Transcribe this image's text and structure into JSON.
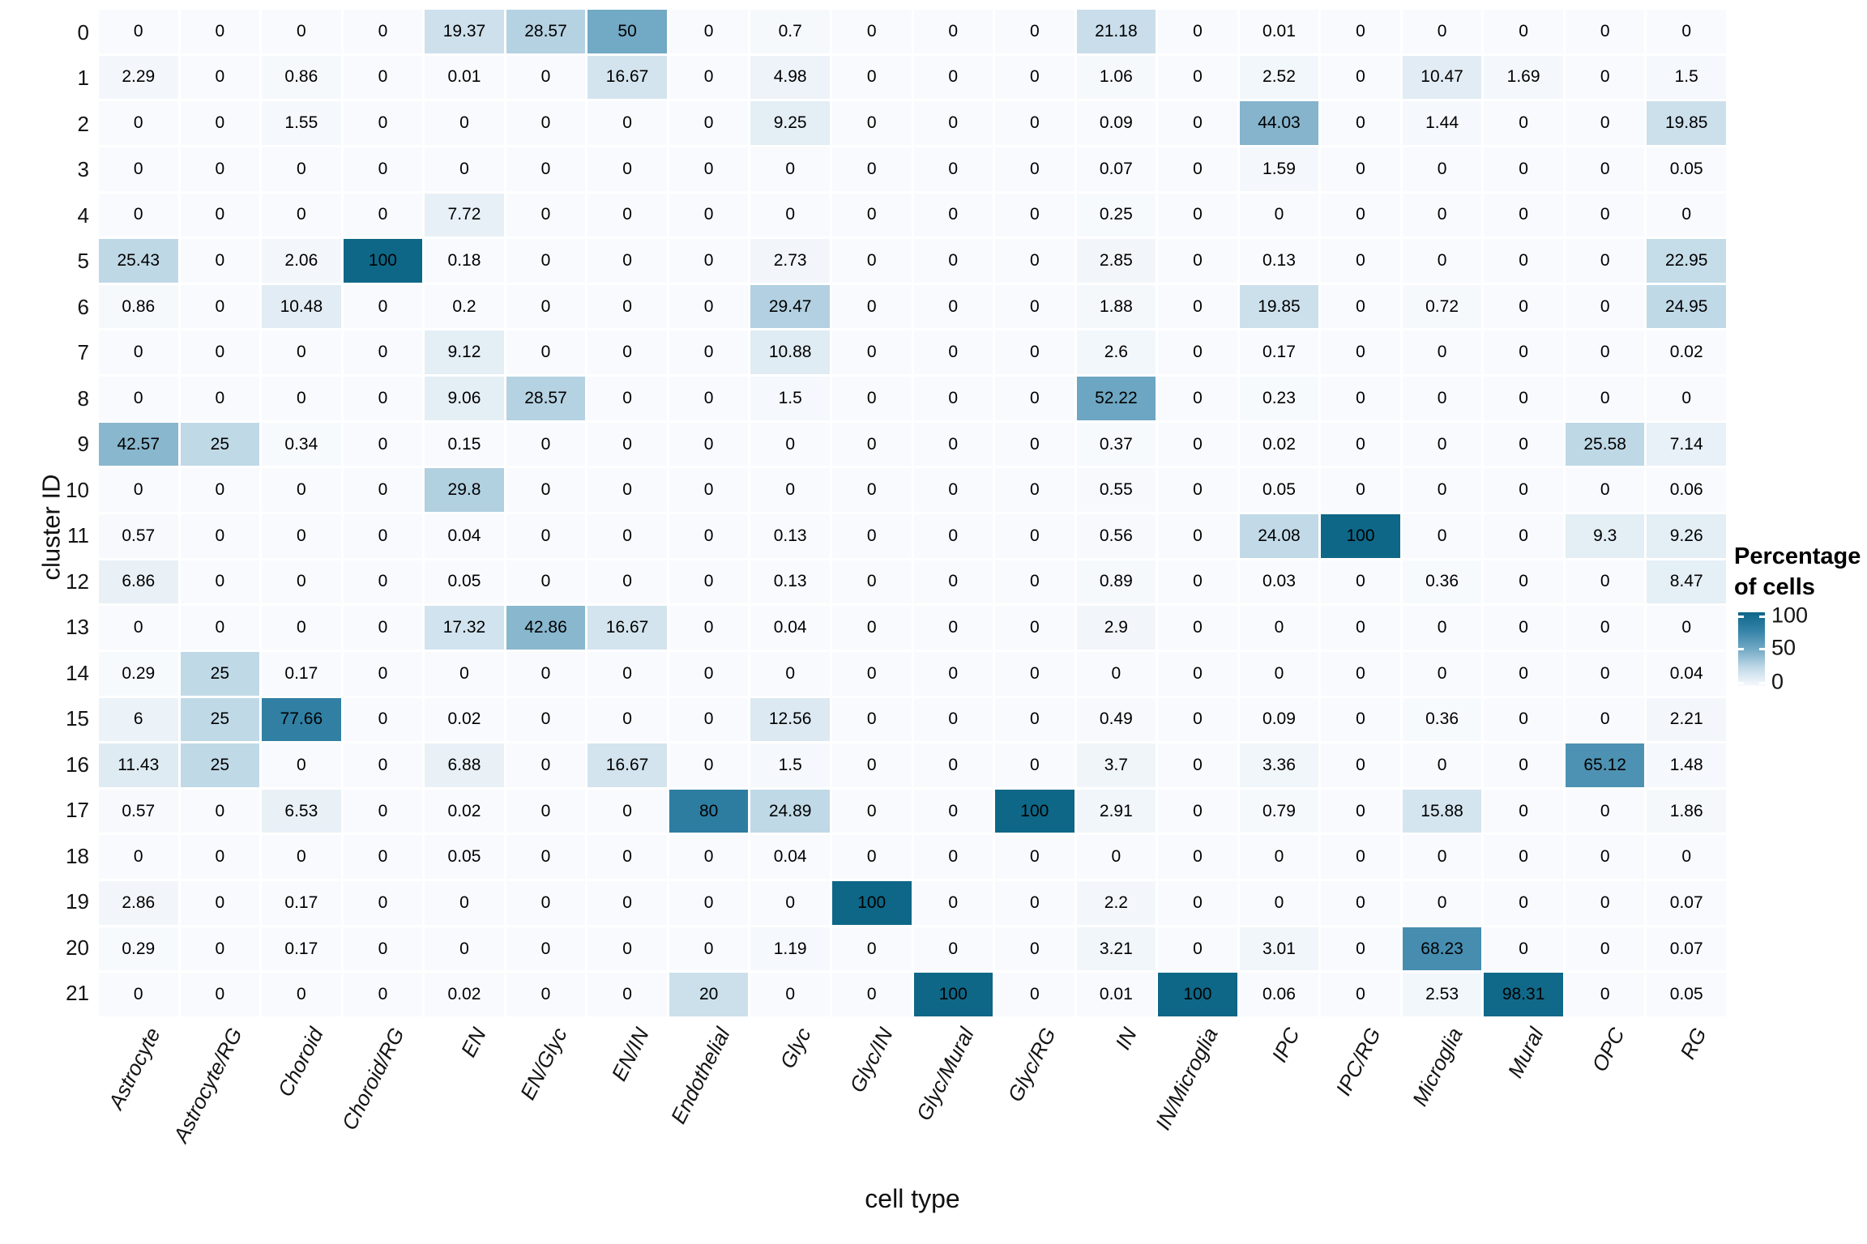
{
  "chart_data": {
    "type": "heatmap",
    "xlabel": "cell type",
    "ylabel": "cluster ID",
    "legend": {
      "title_line1": "Percentage",
      "title_line2": "of cells",
      "ticks": [
        "100",
        "50",
        "0"
      ]
    },
    "columns": [
      "Astrocyte",
      "Astrocyte/RG",
      "Choroid",
      "Choroid/RG",
      "EN",
      "EN/Glyc",
      "EN/IN",
      "Endothelial",
      "Glyc",
      "Glyc/IN",
      "Glyc/Mural",
      "Glyc/RG",
      "IN",
      "IN/Microglia",
      "IPC",
      "IPC/RG",
      "Microglia",
      "Mural",
      "OPC",
      "RG"
    ],
    "rows": [
      "0",
      "1",
      "2",
      "3",
      "4",
      "5",
      "6",
      "7",
      "8",
      "9",
      "10",
      "11",
      "12",
      "13",
      "14",
      "15",
      "16",
      "17",
      "18",
      "19",
      "20",
      "21"
    ],
    "values": [
      [
        0,
        0,
        0,
        0,
        19.37,
        28.57,
        50,
        0,
        0.7,
        0,
        0,
        0,
        21.18,
        0,
        0.01,
        0,
        0,
        0,
        0,
        0
      ],
      [
        2.29,
        0,
        0.86,
        0,
        0.01,
        0,
        16.67,
        0,
        4.98,
        0,
        0,
        0,
        1.06,
        0,
        2.52,
        0,
        10.47,
        1.69,
        0,
        1.5
      ],
      [
        0,
        0,
        1.55,
        0,
        0,
        0,
        0,
        0,
        9.25,
        0,
        0,
        0,
        0.09,
        0,
        44.03,
        0,
        1.44,
        0,
        0,
        19.85
      ],
      [
        0,
        0,
        0,
        0,
        0,
        0,
        0,
        0,
        0,
        0,
        0,
        0,
        0.07,
        0,
        1.59,
        0,
        0,
        0,
        0,
        0.05
      ],
      [
        0,
        0,
        0,
        0,
        7.72,
        0,
        0,
        0,
        0,
        0,
        0,
        0,
        0.25,
        0,
        0,
        0,
        0,
        0,
        0,
        0
      ],
      [
        25.43,
        0,
        2.06,
        100,
        0.18,
        0,
        0,
        0,
        2.73,
        0,
        0,
        0,
        2.85,
        0,
        0.13,
        0,
        0,
        0,
        0,
        22.95
      ],
      [
        0.86,
        0,
        10.48,
        0,
        0.2,
        0,
        0,
        0,
        29.47,
        0,
        0,
        0,
        1.88,
        0,
        19.85,
        0,
        0.72,
        0,
        0,
        24.95
      ],
      [
        0,
        0,
        0,
        0,
        9.12,
        0,
        0,
        0,
        10.88,
        0,
        0,
        0,
        2.6,
        0,
        0.17,
        0,
        0,
        0,
        0,
        0.02
      ],
      [
        0,
        0,
        0,
        0,
        9.06,
        28.57,
        0,
        0,
        1.5,
        0,
        0,
        0,
        52.22,
        0,
        0.23,
        0,
        0,
        0,
        0,
        0
      ],
      [
        42.57,
        25,
        0.34,
        0,
        0.15,
        0,
        0,
        0,
        0,
        0,
        0,
        0,
        0.37,
        0,
        0.02,
        0,
        0,
        0,
        25.58,
        7.14
      ],
      [
        0,
        0,
        0,
        0,
        29.8,
        0,
        0,
        0,
        0,
        0,
        0,
        0,
        0.55,
        0,
        0.05,
        0,
        0,
        0,
        0,
        0.06
      ],
      [
        0.57,
        0,
        0,
        0,
        0.04,
        0,
        0,
        0,
        0.13,
        0,
        0,
        0,
        0.56,
        0,
        24.08,
        100,
        0,
        0,
        9.3,
        9.26
      ],
      [
        6.86,
        0,
        0,
        0,
        0.05,
        0,
        0,
        0,
        0.13,
        0,
        0,
        0,
        0.89,
        0,
        0.03,
        0,
        0.36,
        0,
        0,
        8.47
      ],
      [
        0,
        0,
        0,
        0,
        17.32,
        42.86,
        16.67,
        0,
        0.04,
        0,
        0,
        0,
        2.9,
        0,
        0,
        0,
        0,
        0,
        0,
        0
      ],
      [
        0.29,
        25,
        0.17,
        0,
        0,
        0,
        0,
        0,
        0,
        0,
        0,
        0,
        0,
        0,
        0,
        0,
        0,
        0,
        0,
        0.04
      ],
      [
        6,
        25,
        77.66,
        0,
        0.02,
        0,
        0,
        0,
        12.56,
        0,
        0,
        0,
        0.49,
        0,
        0.09,
        0,
        0.36,
        0,
        0,
        2.21
      ],
      [
        11.43,
        25,
        0,
        0,
        6.88,
        0,
        16.67,
        0,
        1.5,
        0,
        0,
        0,
        3.7,
        0,
        3.36,
        0,
        0,
        0,
        65.12,
        1.48
      ],
      [
        0.57,
        0,
        6.53,
        0,
        0.02,
        0,
        0,
        80,
        24.89,
        0,
        0,
        100,
        2.91,
        0,
        0.79,
        0,
        15.88,
        0,
        0,
        1.86
      ],
      [
        0,
        0,
        0,
        0,
        0.05,
        0,
        0,
        0,
        0.04,
        0,
        0,
        0,
        0,
        0,
        0,
        0,
        0,
        0,
        0,
        0
      ],
      [
        2.86,
        0,
        0.17,
        0,
        0,
        0,
        0,
        0,
        0,
        100,
        0,
        0,
        2.2,
        0,
        0,
        0,
        0,
        0,
        0,
        0.07
      ],
      [
        0.29,
        0,
        0.17,
        0,
        0,
        0,
        0,
        0,
        1.19,
        0,
        0,
        0,
        3.21,
        0,
        3.01,
        0,
        68.23,
        0,
        0,
        0.07
      ],
      [
        0,
        0,
        0,
        0,
        0.02,
        0,
        0,
        20,
        0,
        0,
        100,
        0,
        0.01,
        100,
        0.06,
        0,
        2.53,
        98.31,
        0,
        0.05
      ]
    ],
    "color_scale": [
      {
        "at": 0,
        "hex": "#f8fafd"
      },
      {
        "at": 25,
        "hex": "#c0d9e7"
      },
      {
        "at": 50,
        "hex": "#72a9c4"
      },
      {
        "at": 75,
        "hex": "#3583a8"
      },
      {
        "at": 100,
        "hex": "#0e6787"
      }
    ],
    "value_range": [
      0,
      100
    ],
    "grid_gap_color": "#ffffff",
    "text_color": "#000000"
  }
}
